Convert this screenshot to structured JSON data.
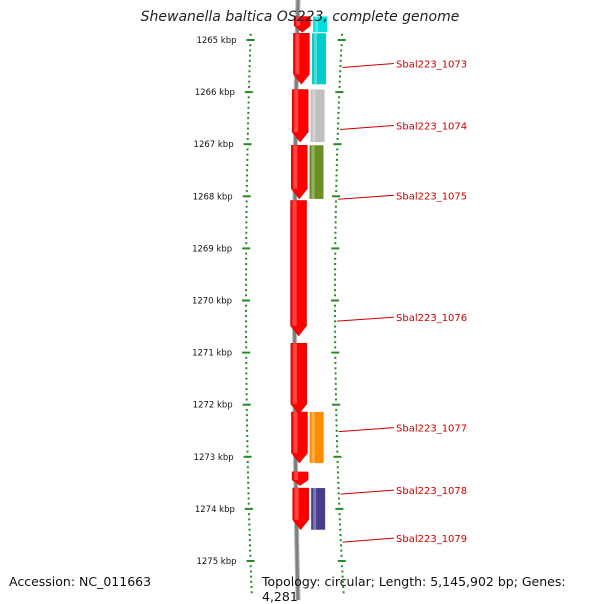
{
  "title": "Shewanella baltica OS223, complete genome",
  "footer": {
    "accession": "Accession: NC_011663",
    "info": "Topology: circular; Length: 5,145,902 bp; Genes: 4,281"
  },
  "colors": {
    "ruler": "#228b22",
    "label": "#cc0000",
    "forward_strand": "#ff0000",
    "backbone": "#808080"
  },
  "axis": {
    "unit": "kbp",
    "start_kbp": 1264.6,
    "end_kbp": 1275.6,
    "ticks": [
      "1265 kbp",
      "1266 kbp",
      "1267 kbp",
      "1268 kbp",
      "1269 kbp",
      "1270 kbp",
      "1271 kbp",
      "1272 kbp",
      "1273 kbp",
      "1274 kbp",
      "1275 kbp"
    ],
    "tick_values": [
      1265,
      1266,
      1267,
      1268,
      1269,
      1270,
      1271,
      1272,
      1273,
      1274,
      1275
    ]
  },
  "genes": [
    {
      "start": 1264.55,
      "end": 1264.85,
      "color": "#ff0000",
      "track": "forward",
      "arrow": true
    },
    {
      "start": 1264.55,
      "end": 1264.85,
      "color": "#00dddd",
      "track": "cog"
    },
    {
      "start": 1264.87,
      "end": 1265.85,
      "color": "#ff0000",
      "track": "forward",
      "arrow": true
    },
    {
      "start": 1264.87,
      "end": 1265.85,
      "color": "#00cccc",
      "track": "cog"
    },
    {
      "start": 1265.95,
      "end": 1266.96,
      "color": "#ff0000",
      "track": "forward",
      "arrow": true
    },
    {
      "start": 1265.95,
      "end": 1266.96,
      "color": "#bfbfbf",
      "track": "cog"
    },
    {
      "start": 1267.02,
      "end": 1268.05,
      "color": "#ff0000",
      "track": "forward",
      "arrow": true
    },
    {
      "start": 1267.02,
      "end": 1268.05,
      "color": "#6b8e23",
      "track": "cog"
    },
    {
      "start": 1268.08,
      "end": 1270.68,
      "color": "#ff0000",
      "track": "forward",
      "arrow": true
    },
    {
      "start": 1270.82,
      "end": 1272.18,
      "color": "#ff0000",
      "track": "forward",
      "arrow": true
    },
    {
      "start": 1272.14,
      "end": 1273.12,
      "color": "#ff0000",
      "track": "forward",
      "arrow": true
    },
    {
      "start": 1272.14,
      "end": 1273.12,
      "color": "#ff8c00",
      "track": "cog"
    },
    {
      "start": 1273.29,
      "end": 1273.55,
      "color": "#ff0000",
      "track": "forward",
      "arrow": true
    },
    {
      "start": 1273.6,
      "end": 1274.4,
      "color": "#ff0000",
      "track": "forward",
      "arrow": true
    },
    {
      "start": 1273.6,
      "end": 1274.4,
      "color": "#483d8b",
      "track": "cog"
    }
  ],
  "labels": [
    {
      "text": "Sbal223_1073",
      "at_kbp": 1265.45
    },
    {
      "text": "Sbal223_1074",
      "at_kbp": 1266.64
    },
    {
      "text": "Sbal223_1075",
      "at_kbp": 1267.98
    },
    {
      "text": "Sbal223_1076",
      "at_kbp": 1270.32
    },
    {
      "text": "Sbal223_1077",
      "at_kbp": 1272.44
    },
    {
      "text": "Sbal223_1078",
      "at_kbp": 1273.64
    },
    {
      "text": "Sbal223_1079",
      "at_kbp": 1274.56
    }
  ]
}
